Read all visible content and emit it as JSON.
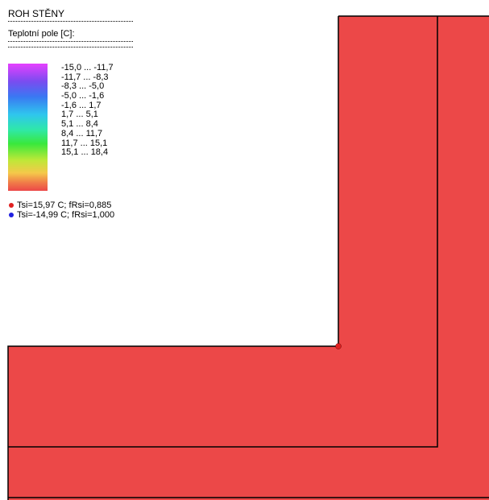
{
  "title": "ROH STĚNY",
  "field_label": "Teplotní pole [C]:",
  "legend": {
    "ranges": [
      "-15,0 ... -11,7",
      "-11,7 ... -8,3",
      "-8,3 ... -5,0",
      "-5,0 ... -1,6",
      "-1,6 ... 1,7",
      "1,7 ... 5,1",
      "5,1 ... 8,4",
      "8,4 ... 11,7",
      "11,7 ... 15,1",
      "15,1 ... 18,4"
    ],
    "colors": [
      "#e640ff",
      "#7a4cf0",
      "#3a78f2",
      "#2fc6ee",
      "#2fe8a8",
      "#39e83c",
      "#bfe838",
      "#f5c84a",
      "#f07848",
      "#ec4848"
    ]
  },
  "markers": [
    {
      "text": "Tsi=15,97 C; fRsi=0,885",
      "color": "#e02020"
    },
    {
      "text": "Tsi=-14,99 C; fRsi=1,000",
      "color": "#2020e0"
    }
  ]
}
